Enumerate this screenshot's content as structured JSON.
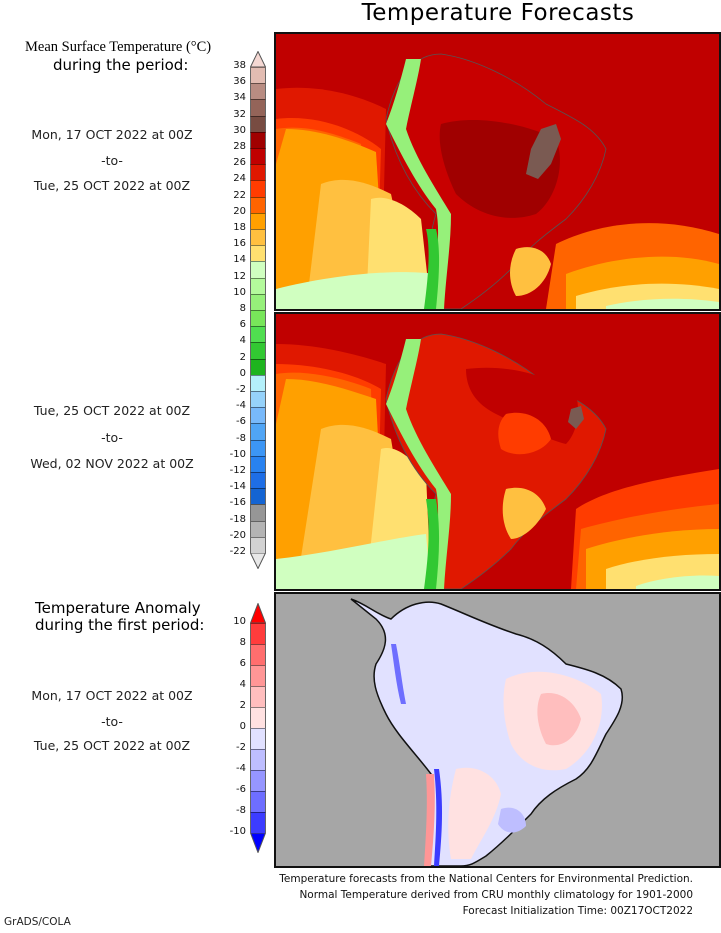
{
  "title": "Temperature Forecasts",
  "mean_legend": {
    "title": "Mean Surface Temperature (°C)",
    "subtitle": "during the period:",
    "unit": "°C",
    "colorbar": {
      "labels": [
        "38",
        "36",
        "34",
        "32",
        "30",
        "28",
        "26",
        "24",
        "22",
        "20",
        "18",
        "16",
        "14",
        "12",
        "10",
        "8",
        "6",
        "4",
        "2",
        "0",
        "-2",
        "-4",
        "-6",
        "-8",
        "-10",
        "-12",
        "-14",
        "-16",
        "-18",
        "-20",
        "-22"
      ],
      "top_arrow_color": "#f5d8d3",
      "bottom_arrow_color": "#e8e8e8",
      "colors": [
        "#e2bcb2",
        "#b88c82",
        "#946459",
        "#784c42",
        "#a00000",
        "#c00000",
        "#e01800",
        "#ff3c00",
        "#ff6400",
        "#ffa000",
        "#ffc040",
        "#ffe070",
        "#d0ffc0",
        "#b4fa9c",
        "#96f07a",
        "#78e65a",
        "#50de50",
        "#32c832",
        "#1eb41e",
        "#b4f0fa",
        "#96d2fa",
        "#78b9fa",
        "#50a5f5",
        "#3c96f5",
        "#2882f0",
        "#1e6ee6",
        "#1464d2",
        "#969696",
        "#b4b4b4",
        "#d2d2d2"
      ]
    }
  },
  "periods": [
    {
      "start": "Mon, 17 OCT 2022 at 00Z",
      "sep": "-to-",
      "end": "Tue, 25 OCT 2022 at 00Z"
    },
    {
      "start": "Tue, 25 OCT 2022 at 00Z",
      "sep": "-to-",
      "end": "Wed, 02 NOV 2022 at 00Z"
    }
  ],
  "anomaly_legend": {
    "title_line1": "Temperature Anomaly",
    "title_line2": "during the first period:",
    "period": {
      "start": "Mon, 17 OCT 2022 at 00Z",
      "sep": "-to-",
      "end": "Tue, 25 OCT 2022 at 00Z"
    },
    "colorbar": {
      "labels": [
        "10",
        "8",
        "6",
        "4",
        "2",
        "0",
        "-2",
        "-4",
        "-6",
        "-8",
        "-10"
      ],
      "top_arrow_color": "#ff0000",
      "bottom_arrow_color": "#0000ff",
      "colors": [
        "#ff3c3c",
        "#ff6e6e",
        "#ff9696",
        "#ffbebe",
        "#ffe1e1",
        "#e1e1ff",
        "#bebeff",
        "#9696ff",
        "#6e6eff",
        "#3c3cff"
      ]
    }
  },
  "maps": [
    {
      "name": "mean-temp-period-1",
      "region": "South America",
      "ocean_color": "#c00000",
      "hotspot_color": "#7a5a52"
    },
    {
      "name": "mean-temp-period-2",
      "region": "South America",
      "ocean_color": "#c00000",
      "hotspot_color": "#7a5a52"
    },
    {
      "name": "anomaly-period-1",
      "region": "South America",
      "ocean_color": "#a6a6a6"
    }
  ],
  "footer": {
    "line1": "Temperature forecasts from the National Centers for Environmental Prediction.",
    "line2": "Normal Temperature derived from CRU monthly climatology for 1901-2000",
    "line3": "Forecast Initialization Time: 00Z17OCT2022"
  },
  "credit": "GrADS/COLA"
}
